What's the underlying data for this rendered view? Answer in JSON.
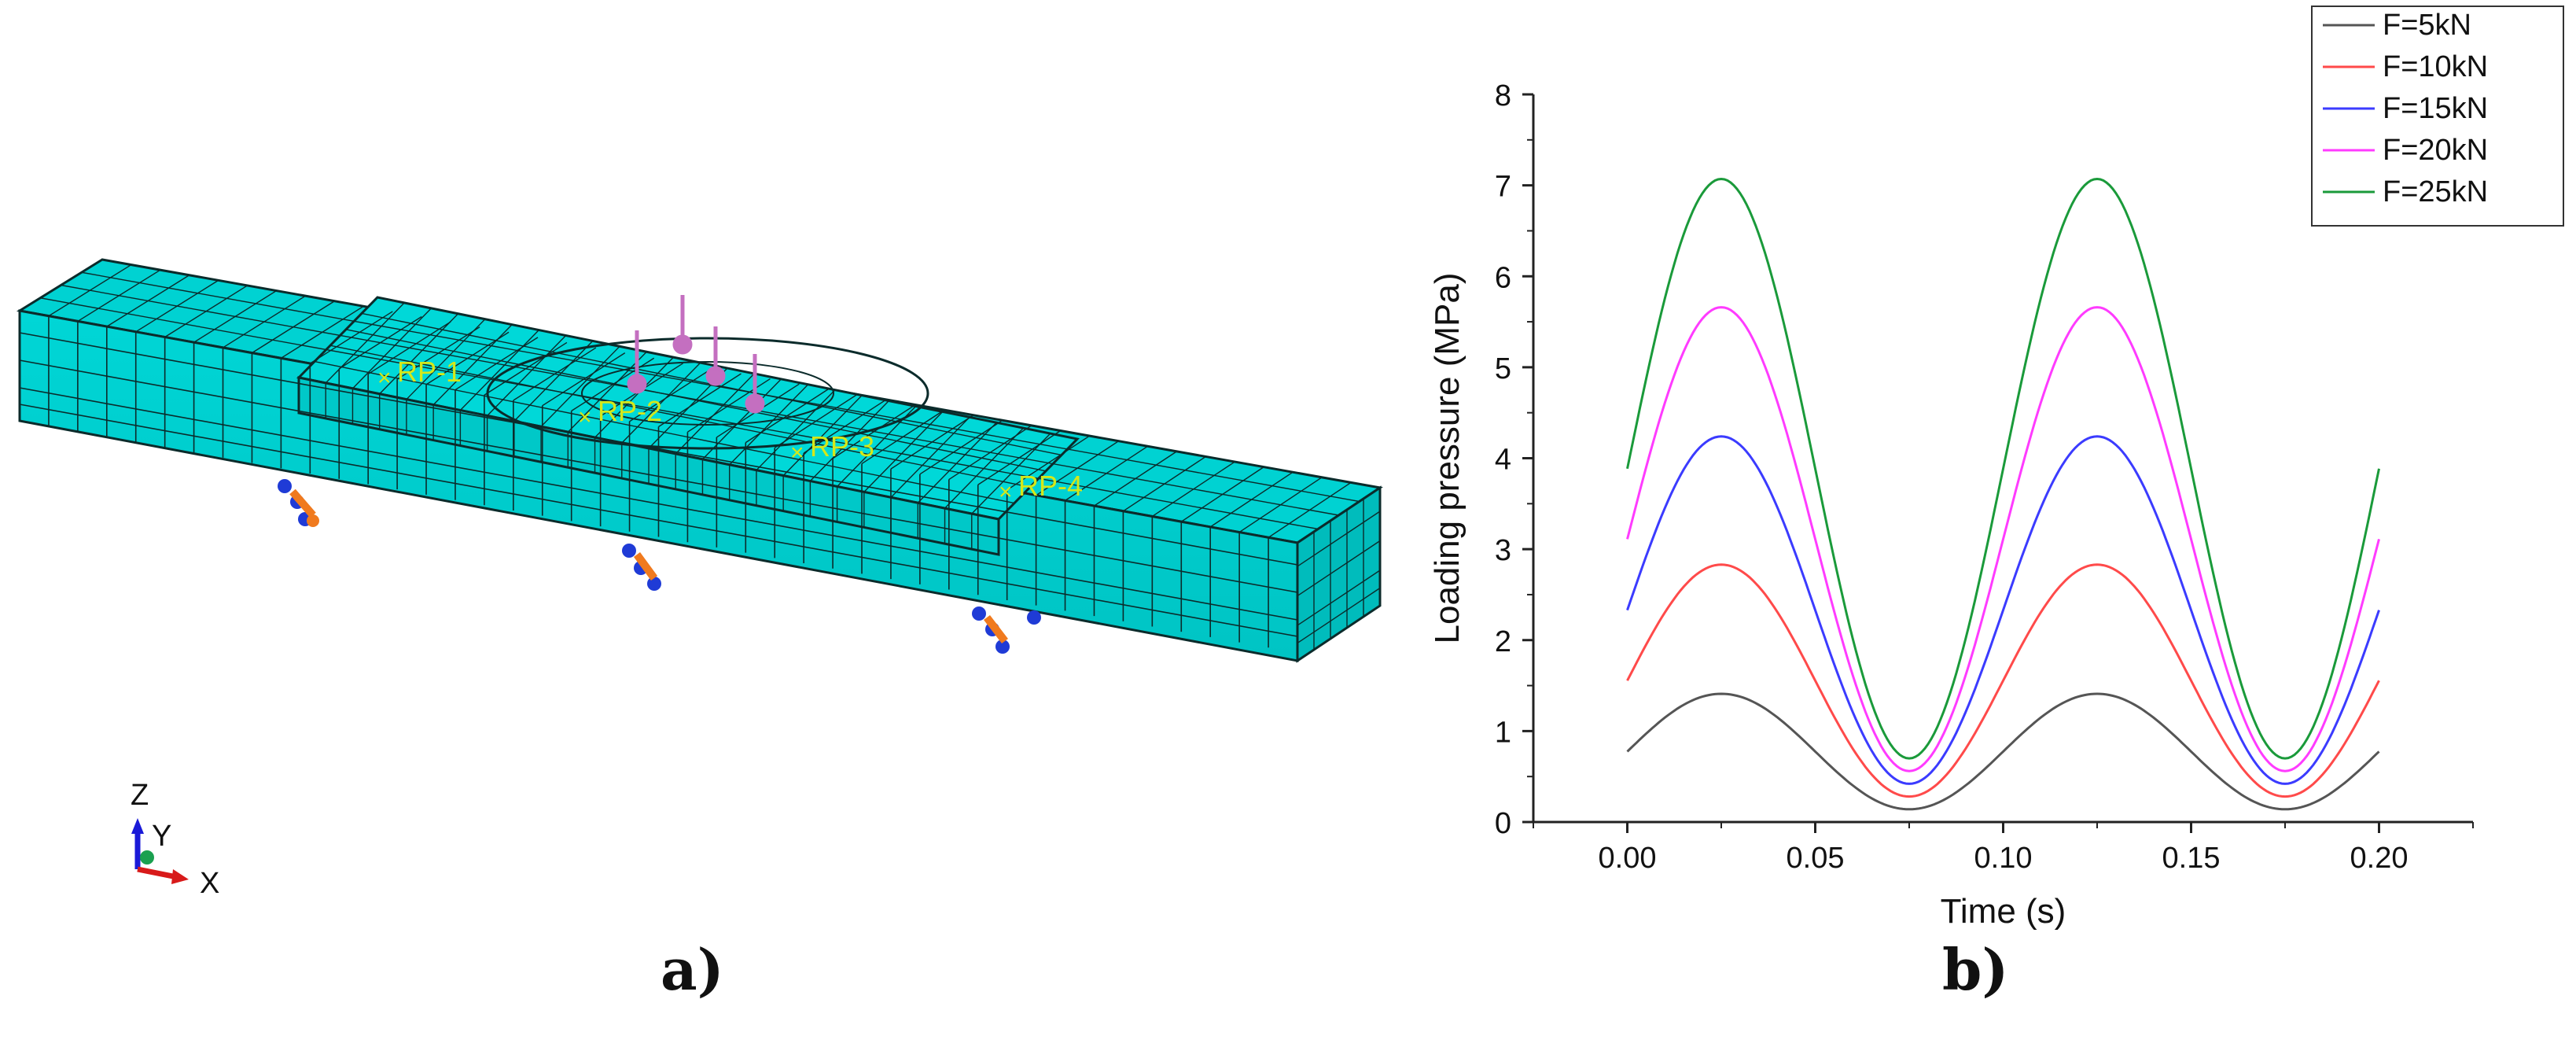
{
  "panel_a": {
    "caption": "a)",
    "reference_points": [
      "RP-1",
      "RP-2",
      "RP-3",
      "RP-4"
    ],
    "triad_labels": {
      "z": "Z",
      "y": "Y",
      "x": "X"
    },
    "colors": {
      "mesh": "#00d2d2",
      "mesh_dark": "#00a8a8",
      "edge": "#0b2b2b",
      "rp_label": "#d4e81a",
      "load_arrow": "#c46fc0",
      "support_blue": "#1f3bd6",
      "support_orange": "#f07a1e"
    }
  },
  "panel_b": {
    "caption": "b)"
  },
  "chart_data": {
    "type": "line",
    "xlabel": "Time (s)",
    "ylabel": "Loading pressure (MPa)",
    "xlim": [
      -0.025,
      0.225
    ],
    "ylim": [
      0,
      8
    ],
    "xticks": [
      0.0,
      0.05,
      0.1,
      0.15,
      0.2
    ],
    "xtick_labels": [
      "0.00",
      "0.05",
      "0.10",
      "0.15",
      "0.20"
    ],
    "yticks": [
      0,
      1,
      2,
      3,
      4,
      5,
      6,
      7,
      8
    ],
    "ytick_labels": [
      "0",
      "1",
      "2",
      "3",
      "4",
      "5",
      "6",
      "7",
      "8"
    ],
    "grid": false,
    "legend_position": "top-right",
    "x": [
      0.0,
      0.0125,
      0.025,
      0.0375,
      0.05,
      0.0625,
      0.075,
      0.0875,
      0.1,
      0.1125,
      0.125,
      0.1375,
      0.15,
      0.1625,
      0.175,
      0.1875,
      0.2
    ],
    "series": [
      {
        "name": "F=5kN",
        "color": "#555555",
        "peak": 1.41,
        "valley": 0.14,
        "values": [
          0.78,
          1.23,
          1.41,
          1.23,
          0.78,
          0.32,
          0.14,
          0.32,
          0.78,
          1.23,
          1.41,
          1.23,
          0.78,
          0.32,
          0.14,
          0.32,
          0.78
        ]
      },
      {
        "name": "F=10kN",
        "color": "#ff4a4a",
        "peak": 2.83,
        "valley": 0.28,
        "values": [
          1.56,
          2.46,
          2.83,
          2.46,
          1.56,
          0.65,
          0.28,
          0.65,
          1.56,
          2.46,
          2.83,
          2.46,
          1.56,
          0.65,
          0.28,
          0.65,
          1.56
        ]
      },
      {
        "name": "F=15kN",
        "color": "#3b3bff",
        "peak": 4.24,
        "valley": 0.42,
        "values": [
          2.33,
          3.68,
          4.24,
          3.68,
          2.33,
          0.98,
          0.42,
          0.98,
          2.33,
          3.68,
          4.24,
          3.68,
          2.33,
          0.98,
          0.42,
          0.98,
          2.33
        ]
      },
      {
        "name": "F=20kN",
        "color": "#ff3bff",
        "peak": 5.66,
        "valley": 0.56,
        "values": [
          3.11,
          4.91,
          5.66,
          4.91,
          3.11,
          1.31,
          0.56,
          1.31,
          3.11,
          4.91,
          5.66,
          4.91,
          3.11,
          1.31,
          0.56,
          1.31,
          3.11
        ]
      },
      {
        "name": "F=25kN",
        "color": "#1a9a3a",
        "peak": 7.07,
        "valley": 0.7,
        "values": [
          3.88,
          6.13,
          7.07,
          6.13,
          3.88,
          1.64,
          0.7,
          1.64,
          3.88,
          6.13,
          7.07,
          6.13,
          3.88,
          1.64,
          0.7,
          1.64,
          3.88
        ]
      }
    ]
  }
}
